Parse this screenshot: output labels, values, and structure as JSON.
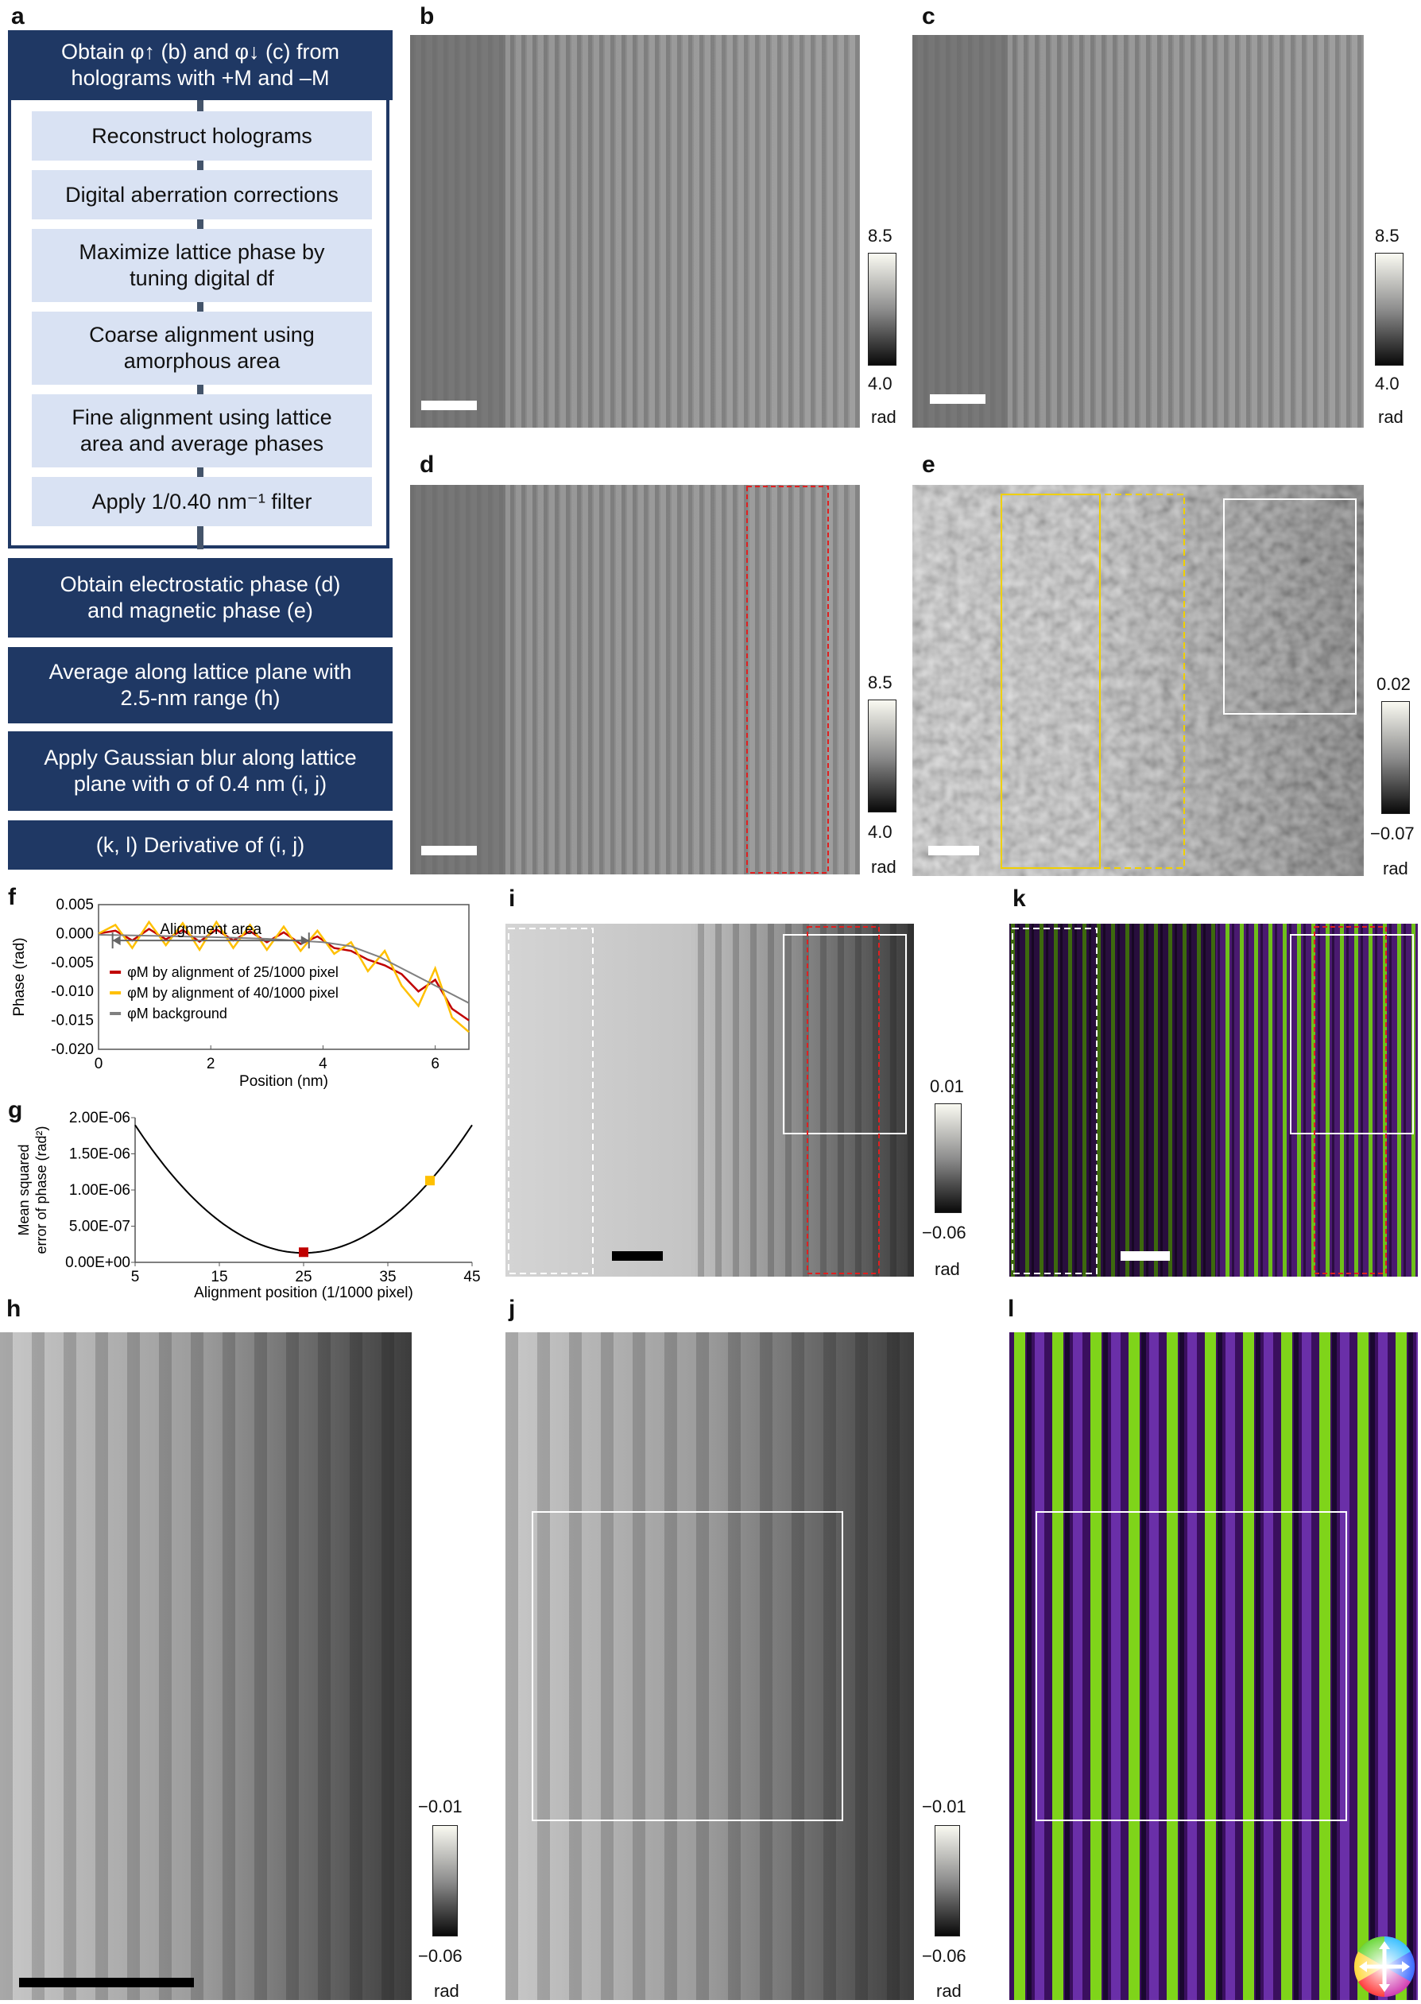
{
  "panel_labels": {
    "a": "a",
    "b": "b",
    "c": "c",
    "d": "d",
    "e": "e",
    "f": "f",
    "g": "g",
    "h": "h",
    "i": "i",
    "j": "j",
    "k": "k",
    "l": "l"
  },
  "flow": {
    "top_main": "Obtain φ↑ (b) and φ↓ (c) from holograms with +M and –M",
    "sub_steps": [
      "Reconstruct holograms",
      "Digital aberration corrections",
      "Maximize lattice phase by tuning digital df",
      "Coarse alignment using amorphous area",
      "Fine alignment using lattice area and average phases",
      "Apply 1/0.40 nm⁻¹ filter"
    ],
    "bottom_steps": [
      "Obtain electrostatic phase (d) and magnetic phase (e)",
      "Average along lattice plane with 2.5-nm range (h)",
      "Apply Gaussian blur along lattice plane with σ of 0.4 nm (i, j)",
      "(k, l) Derivative of (i, j)"
    ]
  },
  "colorbars": {
    "b": {
      "max": "8.5",
      "min": "4.0",
      "unit": "rad"
    },
    "c": {
      "max": "8.5",
      "min": "4.0",
      "unit": "rad"
    },
    "d": {
      "max": "8.5",
      "min": "4.0",
      "unit": "rad"
    },
    "e": {
      "max": "0.02",
      "min": "−0.07",
      "unit": "rad"
    },
    "i": {
      "max": "0.01",
      "min": "−0.06",
      "unit": "rad"
    },
    "h": {
      "max": "−0.01",
      "min": "−0.06",
      "unit": "rad"
    },
    "j": {
      "max": "−0.01",
      "min": "−0.06",
      "unit": "rad"
    }
  },
  "chart_f": {
    "annotation": "Alignment area",
    "legend": [
      {
        "label": "φM by alignment of 25/1000 pixel",
        "color": "#c00000"
      },
      {
        "label": "φM by alignment of 40/1000 pixel",
        "color": "#ffc000"
      },
      {
        "label": "φM background",
        "color": "#808080"
      }
    ]
  },
  "chart_g": {},
  "chart_data": [
    {
      "type": "line",
      "title": "",
      "xlabel": "Position (nm)",
      "ylabel": "Phase (rad)",
      "xlim": [
        0,
        6.6
      ],
      "ylim": [
        -0.02,
        0.005
      ],
      "xticks": [
        "0",
        "2",
        "4",
        "6"
      ],
      "yticks": [
        "0.005",
        "0.000",
        "-0.005",
        "-0.010",
        "-0.015",
        "-0.020"
      ],
      "grid": false,
      "series": [
        {
          "name": "φM by alignment of 25/1000 pixel",
          "color": "#c00000",
          "x": [
            0,
            0.3,
            0.6,
            0.9,
            1.2,
            1.5,
            1.8,
            2.1,
            2.4,
            2.7,
            3.0,
            3.3,
            3.6,
            3.9,
            4.2,
            4.5,
            4.8,
            5.1,
            5.4,
            5.7,
            6.0,
            6.3,
            6.6
          ],
          "y": [
            0.0,
            0.0005,
            -0.0012,
            0.0008,
            -0.001,
            0.0006,
            -0.0014,
            0.0007,
            -0.0012,
            0.0004,
            -0.0015,
            0.0002,
            -0.0018,
            -0.0005,
            -0.0025,
            -0.003,
            -0.0045,
            -0.0055,
            -0.007,
            -0.01,
            -0.008,
            -0.013,
            -0.015
          ]
        },
        {
          "name": "φM by alignment of 40/1000 pixel",
          "color": "#ffc000",
          "x": [
            0,
            0.3,
            0.6,
            0.9,
            1.2,
            1.5,
            1.8,
            2.1,
            2.4,
            2.7,
            3.0,
            3.3,
            3.6,
            3.9,
            4.2,
            4.5,
            4.8,
            5.1,
            5.4,
            5.7,
            6.0,
            6.3,
            6.6
          ],
          "y": [
            0.0,
            0.0015,
            -0.0025,
            0.002,
            -0.002,
            0.0018,
            -0.0028,
            0.002,
            -0.0025,
            0.0015,
            -0.0028,
            0.0012,
            -0.003,
            0.0005,
            -0.0035,
            -0.0015,
            -0.0065,
            -0.003,
            -0.009,
            -0.0125,
            -0.006,
            -0.0145,
            -0.017
          ]
        },
        {
          "name": "φM background",
          "color": "#808080",
          "x": [
            0,
            1,
            2,
            3,
            4,
            4.5,
            5,
            5.5,
            6,
            6.6
          ],
          "y": [
            -0.0002,
            -0.0004,
            -0.0006,
            -0.0009,
            -0.0015,
            -0.0022,
            -0.004,
            -0.0065,
            -0.009,
            -0.012
          ]
        }
      ]
    },
    {
      "type": "line",
      "title": "",
      "xlabel": "Alignment position (1/1000 pixel)",
      "ylabel": "Mean squared error of phase (rad²)",
      "xlim": [
        5,
        45
      ],
      "ylim": [
        0,
        2e-06
      ],
      "xticks": [
        "5",
        "15",
        "25",
        "35",
        "45"
      ],
      "yticks": [
        "2.00E-06",
        "1.50E-06",
        "1.00E-06",
        "5.00E-07",
        "0.00E+00"
      ],
      "grid": false,
      "series": [
        {
          "name": "",
          "color": "#000000",
          "x": [
            5,
            10,
            15,
            20,
            25,
            30,
            35,
            40,
            45
          ],
          "y": [
            1.9e-06,
            1.1e-06,
            5.5e-07,
            2.2e-07,
            1.3e-07,
            2.5e-07,
            6e-07,
            1.15e-06,
            1.9e-06
          ]
        }
      ],
      "markers": [
        {
          "x": 25,
          "y": 1.4e-07,
          "color": "#c00000"
        },
        {
          "x": 40,
          "y": 1.13e-06,
          "color": "#ffc000"
        }
      ]
    }
  ]
}
